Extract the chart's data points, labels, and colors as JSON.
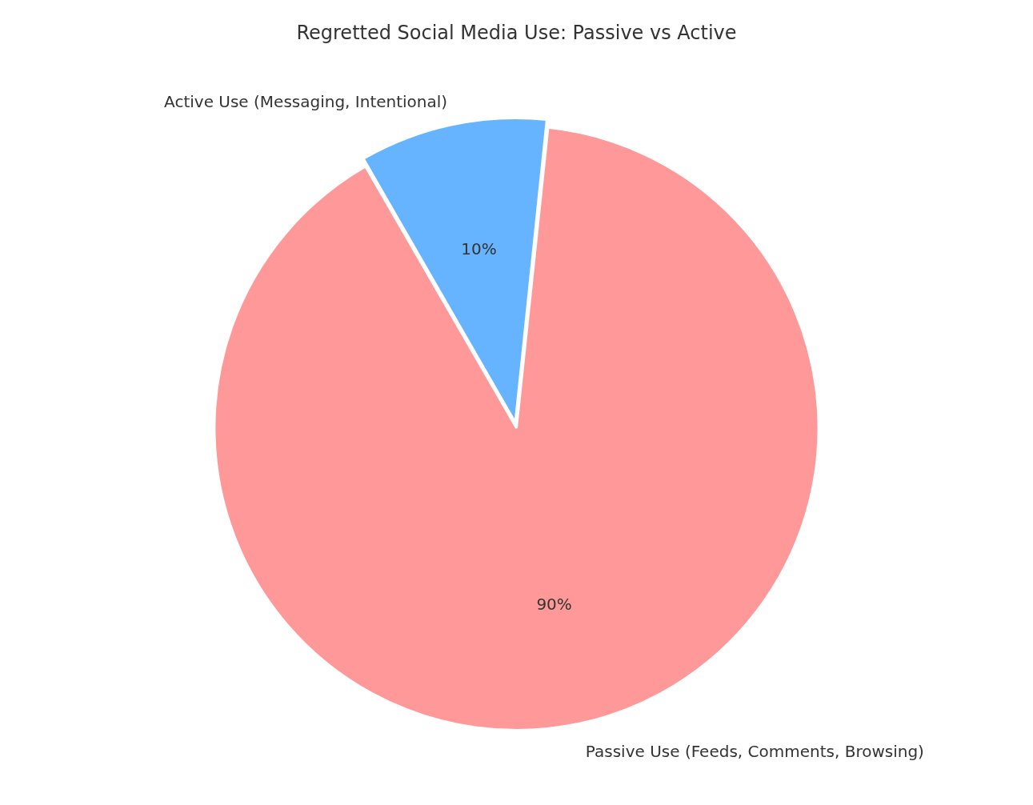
{
  "chart_data": {
    "type": "pie",
    "title": "Regretted Social Media Use: Passive vs Active",
    "categories": [
      "Passive Use (Feeds, Comments, Browsing)",
      "Active Use (Messaging, Intentional)"
    ],
    "values": [
      90,
      10
    ],
    "colors": [
      "#ff9999",
      "#66b3ff"
    ],
    "value_labels": [
      "90%",
      "10%"
    ],
    "legend": false
  }
}
